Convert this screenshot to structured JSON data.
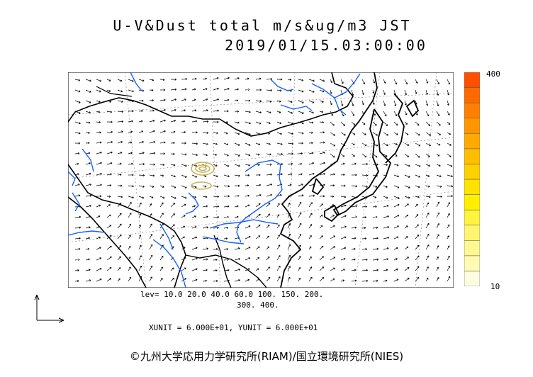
{
  "title": {
    "line1": "U-V&Dust total m/s&ug/m3 JST",
    "line2": "2019/01/15.03:00:00"
  },
  "colorbar": {
    "max_label": "400",
    "min_label": "10",
    "colors": [
      "#fffde0",
      "#fffbb0",
      "#fff890",
      "#fff570",
      "#fff240",
      "#fff000",
      "#ffe200",
      "#ffd000",
      "#ffbe00",
      "#ffaa00",
      "#ff9600",
      "#ff8000",
      "#ff6a00",
      "#ff5000"
    ]
  },
  "levels": {
    "line1": "lev= 10.0 20.0 40.0 60.0 100. 150. 200.",
    "line2": "300. 400."
  },
  "units": {
    "text": "XUNIT = 6.000E+01, YUNIT = 6.000E+01"
  },
  "copyright": "©九州大学応用力学研究所(RIAM)/国立環境研究所(NIES)",
  "colors": {
    "coast": "#000000",
    "river": "#1560ff",
    "dust_contour": "#c8b45a"
  }
}
